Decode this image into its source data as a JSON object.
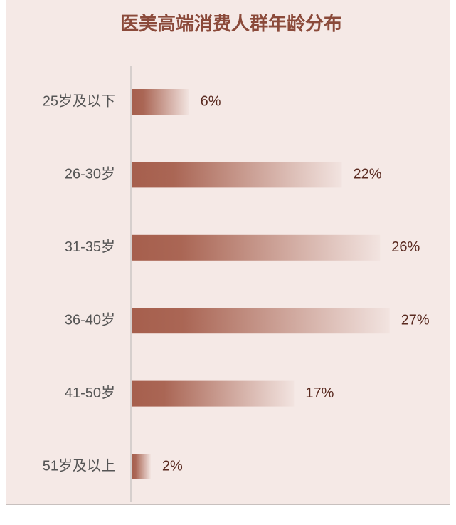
{
  "chart_data": {
    "type": "bar",
    "orientation": "horizontal",
    "title": "医美高端消费人群年龄分布",
    "categories": [
      "25岁及以下",
      "26-30岁",
      "31-35岁",
      "36-40岁",
      "41-50岁",
      "51岁及以上"
    ],
    "values": [
      6,
      22,
      26,
      27,
      17,
      2
    ],
    "value_labels": [
      "6%",
      "22%",
      "26%",
      "27%",
      "17%",
      "2%"
    ],
    "color": "#a65f4d",
    "xlim": [
      0,
      30
    ]
  }
}
